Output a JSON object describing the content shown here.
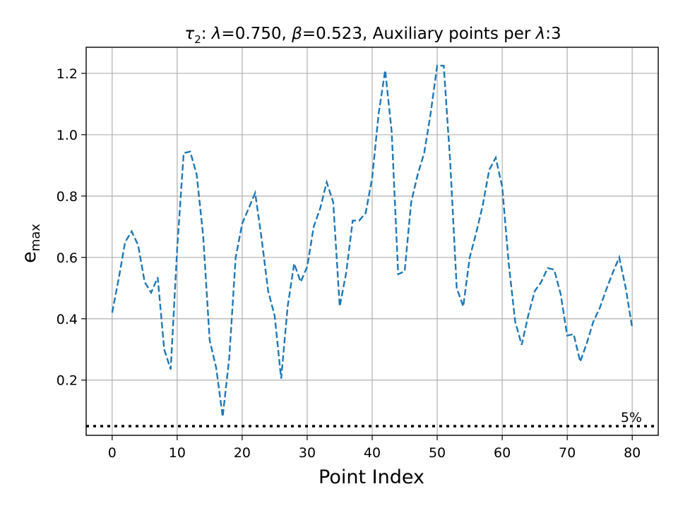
{
  "chart_data": {
    "type": "line",
    "title_parts": {
      "tau": "τ",
      "tau_sub": "2",
      "rest_a": ": ",
      "lambda1": "λ",
      "rest_b": "=0.750, ",
      "beta": "β",
      "rest_c": "=0.523, Auxiliary points per ",
      "lambda2": "λ",
      "rest_d": ":3"
    },
    "xlabel": "Point Index",
    "ylabel_main": "e",
    "ylabel_sub": "max",
    "xlim": [
      -4,
      84
    ],
    "ylim": [
      0.02,
      1.285
    ],
    "xticks": [
      0,
      10,
      20,
      30,
      40,
      50,
      60,
      70,
      80
    ],
    "xtick_labels": [
      "0",
      "10",
      "20",
      "30",
      "40",
      "50",
      "60",
      "70",
      "80"
    ],
    "yticks": [
      0.2,
      0.4,
      0.6,
      0.8,
      1.0,
      1.2
    ],
    "ytick_labels": [
      "0.2",
      "0.4",
      "0.6",
      "0.8",
      "1.0",
      "1.2"
    ],
    "grid": true,
    "line_color": "#1f77b4",
    "threshold": {
      "value": 0.05,
      "label": "5%",
      "color": "#000000"
    },
    "series": [
      {
        "x": [
          0,
          1,
          2,
          3,
          4,
          5,
          6,
          7,
          8,
          9,
          10,
          11,
          12,
          13,
          14,
          15,
          16,
          17,
          18,
          19,
          20,
          21,
          22,
          23,
          24,
          25,
          26,
          27,
          28,
          29,
          30,
          31,
          32,
          33,
          34,
          35,
          36,
          37,
          38,
          39,
          40,
          41,
          42,
          43,
          44,
          45,
          46,
          47,
          48,
          49,
          50,
          51,
          52,
          53,
          54,
          55,
          56,
          57,
          58,
          59,
          60,
          61,
          62,
          63,
          64,
          65,
          66,
          67,
          68,
          69,
          70,
          71,
          72,
          73,
          74,
          75,
          76,
          77,
          78,
          79,
          80
        ],
        "values": [
          0.42,
          0.53,
          0.65,
          0.685,
          0.64,
          0.52,
          0.485,
          0.535,
          0.3,
          0.235,
          0.63,
          0.94,
          0.945,
          0.87,
          0.67,
          0.33,
          0.24,
          0.08,
          0.27,
          0.6,
          0.71,
          0.76,
          0.81,
          0.66,
          0.49,
          0.41,
          0.205,
          0.44,
          0.58,
          0.52,
          0.57,
          0.7,
          0.76,
          0.845,
          0.78,
          0.44,
          0.55,
          0.72,
          0.72,
          0.745,
          0.86,
          1.07,
          1.21,
          1.01,
          0.545,
          0.555,
          0.78,
          0.87,
          0.94,
          1.07,
          1.225,
          1.225,
          0.91,
          0.5,
          0.44,
          0.6,
          0.68,
          0.77,
          0.885,
          0.925,
          0.83,
          0.58,
          0.39,
          0.315,
          0.41,
          0.49,
          0.52,
          0.565,
          0.56,
          0.48,
          0.345,
          0.35,
          0.26,
          0.32,
          0.39,
          0.435,
          0.495,
          0.55,
          0.6,
          0.5,
          0.37
        ]
      }
    ]
  }
}
